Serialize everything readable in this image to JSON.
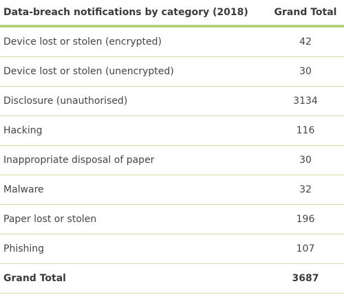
{
  "table": {
    "header": [
      "Data-breach notifications by category (2018)",
      "Grand Total"
    ],
    "rows": [
      [
        "Device lost or stolen (encrypted)",
        42
      ],
      [
        "Device lost or stolen (unencrypted)",
        30
      ],
      [
        "Disclosure (unauthorised)",
        3134
      ],
      [
        "Hacking",
        116
      ],
      [
        "Inappropriate disposal of paper",
        30
      ],
      [
        "Malware",
        32
      ],
      [
        "Paper lost or stolen",
        196
      ],
      [
        "Phishing",
        107
      ]
    ],
    "total": [
      "Grand Total",
      3687
    ]
  }
}
